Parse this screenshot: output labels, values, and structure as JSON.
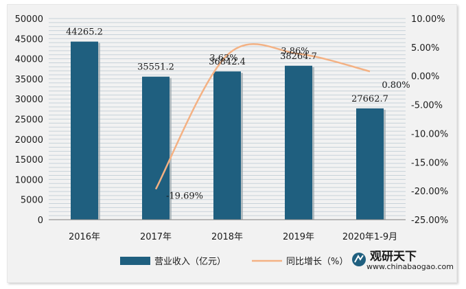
{
  "chart_data": {
    "type": "bar+line",
    "categories": [
      "2016年",
      "2017年",
      "2018年",
      "2019年",
      "2020年1-9月"
    ],
    "series": [
      {
        "name": "营业收入（亿元）",
        "type": "bar",
        "axis": "left",
        "color": "#1f5f7f",
        "values": [
          44265.2,
          35551.2,
          36842.4,
          38264.7,
          27662.7
        ],
        "labels": [
          "44265.2",
          "35551.2",
          "36842.4",
          "38264.7",
          "27662.7"
        ]
      },
      {
        "name": "同比增长（%）",
        "type": "line",
        "axis": "right",
        "color": "#f4b183",
        "values": [
          null,
          -19.69,
          3.63,
          3.86,
          0.8
        ],
        "labels": [
          "",
          "-19.69%",
          "3.63%",
          "3.86%",
          "0.80%"
        ]
      }
    ],
    "y_left": {
      "range": [
        0,
        50000
      ],
      "ticks": [
        "0",
        "5000",
        "10000",
        "15000",
        "20000",
        "25000",
        "30000",
        "35000",
        "40000",
        "45000",
        "50000"
      ]
    },
    "y_right": {
      "range": [
        -25,
        10
      ],
      "ticks": [
        "-25.00%",
        "-20.00%",
        "-15.00%",
        "-10.00%",
        "-5.00%",
        "0.00%",
        "5.00%",
        "10.00%"
      ]
    },
    "grid": true,
    "legend": "bottom"
  },
  "watermark": {
    "brand": "观研天下",
    "url": "www.chinabaogao.com"
  }
}
